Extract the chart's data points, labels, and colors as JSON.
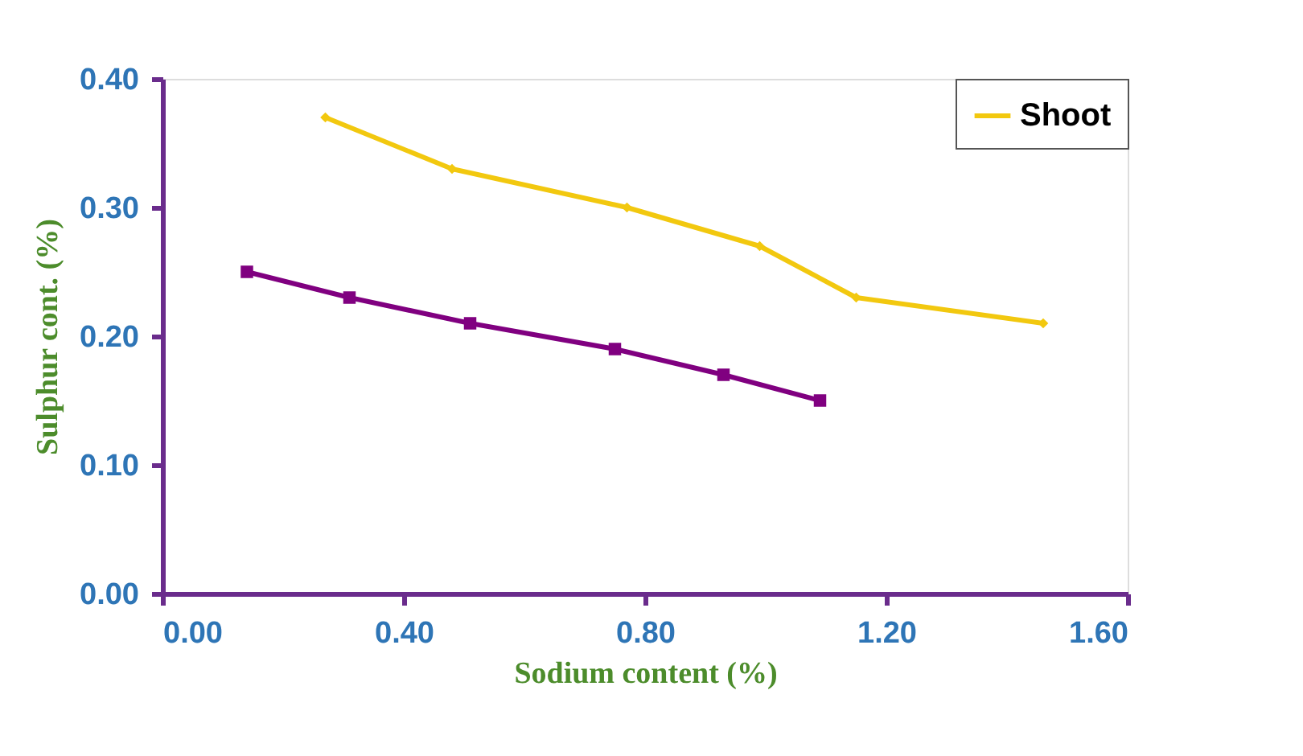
{
  "chart_data": {
    "type": "line",
    "xlabel": "Sodium content (%)",
    "ylabel": "Sulphur cont. (%)",
    "series": [
      {
        "name": "Shoot",
        "color": "#f2c80f",
        "marker": "diamond",
        "x": [
          0.27,
          0.48,
          0.77,
          0.99,
          1.15,
          1.46
        ],
        "values": [
          0.37,
          0.33,
          0.3,
          0.27,
          0.23,
          0.21
        ]
      },
      {
        "color": "#800080",
        "marker": "square",
        "x": [
          0.14,
          0.31,
          0.51,
          0.75,
          0.93,
          1.09
        ],
        "values": [
          0.25,
          0.23,
          0.21,
          0.19,
          0.17,
          0.15
        ]
      }
    ],
    "xlim": [
      0,
      1.6
    ],
    "xticks": [
      {
        "value": 0,
        "label": "0.00"
      },
      {
        "value": 0.4,
        "label": "0.40"
      },
      {
        "value": 0.8,
        "label": "0.80"
      },
      {
        "value": 1.2,
        "label": "1.20"
      },
      {
        "value": 1.6,
        "label": "1.60"
      }
    ],
    "ylim": [
      0,
      0.4
    ],
    "yticks": [
      {
        "value": 0,
        "label": "0.00"
      },
      {
        "value": 0.1,
        "label": "0.10"
      },
      {
        "value": 0.2,
        "label": "0.20"
      },
      {
        "value": 0.3,
        "label": "0.30"
      },
      {
        "value": 0.4,
        "label": "0.40"
      }
    ],
    "grid": false,
    "legend": "top right",
    "line_style": "solid"
  }
}
